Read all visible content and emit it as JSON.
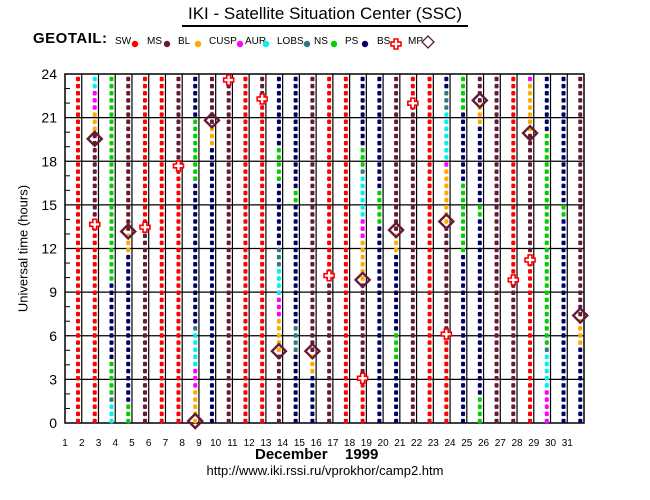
{
  "header": {
    "title": "IKI - Satellite Situation Center (SSC)",
    "satellite": "GEOTAIL:"
  },
  "footer": {
    "month": "December",
    "year": "1999",
    "url": "http://www.iki.rssi.ru/vprokhor/camp2.htm"
  },
  "chart_data": {
    "type": "scatter",
    "title": "IKI - Satellite Situation Center (SSC)",
    "xlabel": "December 1999",
    "ylabel": "Universal time (hours)",
    "xlim": [
      1,
      32
    ],
    "ylim": [
      0,
      24
    ],
    "x_ticks": [
      1,
      2,
      3,
      4,
      5,
      6,
      7,
      8,
      9,
      10,
      11,
      12,
      13,
      14,
      15,
      16,
      17,
      18,
      19,
      20,
      21,
      22,
      23,
      24,
      25,
      26,
      27,
      28,
      29,
      30,
      31
    ],
    "y_ticks": [
      0,
      3,
      6,
      9,
      12,
      15,
      18,
      21,
      24
    ],
    "grid": true,
    "legend_placement": "top",
    "legend": [
      {
        "code": "SW",
        "label": "SW",
        "marker": "dot",
        "color": "#ff0000"
      },
      {
        "code": "MS",
        "label": "MS",
        "marker": "dot",
        "color": "#661a33"
      },
      {
        "code": "BL",
        "label": "BL",
        "marker": "dot",
        "color": "#ffaa00"
      },
      {
        "code": "CUSP",
        "label": "CUSP",
        "marker": "dot",
        "color": "#ff00ff"
      },
      {
        "code": "AUR",
        "label": "AUR",
        "marker": "dot",
        "color": "#00f0f0"
      },
      {
        "code": "LOBS",
        "label": "LOBS",
        "marker": "dot",
        "color": "#2f7a80"
      },
      {
        "code": "NS",
        "label": "NS",
        "marker": "dot",
        "color": "#00d000"
      },
      {
        "code": "PS",
        "label": "PS",
        "marker": "dot",
        "color": "#000066"
      },
      {
        "code": "BS",
        "label": "BS",
        "marker": "cross",
        "color": "#ff0000"
      },
      {
        "code": "MP",
        "label": "MP",
        "marker": "diamond",
        "color": "#661a33"
      }
    ],
    "days": [
      {
        "day": 1,
        "segments": [
          [
            0,
            24,
            "SW"
          ]
        ]
      },
      {
        "day": 2,
        "segments": [
          [
            0,
            13.8,
            "SW"
          ],
          [
            13.8,
            20.5,
            "MS"
          ],
          [
            20.5,
            22,
            "BL"
          ],
          [
            22,
            23.3,
            "CUSP"
          ],
          [
            23.3,
            24,
            "AUR"
          ]
        ],
        "BS": [
          13.8
        ],
        "MP": [
          19.8
        ]
      },
      {
        "day": 3,
        "segments": [
          [
            0,
            1.5,
            "AUR"
          ],
          [
            1.5,
            2,
            "LOBS"
          ],
          [
            2,
            4.3,
            "NS"
          ],
          [
            4.3,
            10,
            "PS"
          ],
          [
            10,
            24,
            "NS"
          ]
        ]
      },
      {
        "day": 4,
        "segments": [
          [
            0,
            1.4,
            "NS"
          ],
          [
            1.4,
            12,
            "PS"
          ],
          [
            12,
            13.3,
            "BL"
          ],
          [
            13.3,
            24,
            "MS"
          ]
        ],
        "MP": [
          13.3
        ]
      },
      {
        "day": 5,
        "segments": [
          [
            0,
            13.6,
            "MS"
          ],
          [
            13.6,
            24,
            "SW"
          ]
        ],
        "BS": [
          13.6
        ]
      },
      {
        "day": 6,
        "segments": [
          [
            0,
            24,
            "SW"
          ]
        ]
      },
      {
        "day": 7,
        "segments": [
          [
            0,
            18,
            "SW"
          ],
          [
            18,
            24,
            "MS"
          ]
        ],
        "BS": [
          17.9
        ]
      },
      {
        "day": 8,
        "segments": [
          [
            0,
            2.5,
            "BL"
          ],
          [
            2.5,
            3.7,
            "CUSP"
          ],
          [
            3.7,
            6.1,
            "AUR"
          ],
          [
            6.1,
            6.8,
            "LOBS"
          ],
          [
            6.8,
            17,
            "PS"
          ],
          [
            17,
            21.3,
            "NS"
          ],
          [
            21.3,
            24,
            "PS"
          ]
        ],
        "MP": [
          0
        ]
      },
      {
        "day": 9,
        "segments": [
          [
            0,
            16.2,
            "PS"
          ],
          [
            16.2,
            16.5,
            "NS"
          ],
          [
            16.5,
            19.5,
            "PS"
          ],
          [
            19.5,
            21,
            "BL"
          ],
          [
            21,
            24,
            "MS"
          ]
        ],
        "MP": [
          21.1
        ]
      },
      {
        "day": 10,
        "segments": [
          [
            0,
            24,
            "MS"
          ]
        ],
        "BS": [
          24
        ]
      },
      {
        "day": 11,
        "segments": [
          [
            0,
            24,
            "SW"
          ]
        ]
      },
      {
        "day": 12,
        "segments": [
          [
            0,
            22.6,
            "SW"
          ],
          [
            22.6,
            24,
            "MS"
          ]
        ],
        "BS": [
          22.6
        ]
      },
      {
        "day": 13,
        "segments": [
          [
            0,
            4.9,
            "MS"
          ],
          [
            4.9,
            7.4,
            "BL"
          ],
          [
            7.4,
            8.8,
            "CUSP"
          ],
          [
            8.8,
            11,
            "AUR"
          ],
          [
            11,
            12.1,
            "LOBS"
          ],
          [
            12.1,
            17,
            "PS"
          ],
          [
            17,
            19.2,
            "NS"
          ],
          [
            19.2,
            24,
            "PS"
          ]
        ],
        "MP": [
          4.9
        ]
      },
      {
        "day": 14,
        "segments": [
          [
            0,
            4.9,
            "PS"
          ],
          [
            4.9,
            6.7,
            "LOBS"
          ],
          [
            6.7,
            15.2,
            "PS"
          ],
          [
            15.2,
            16.5,
            "NS"
          ],
          [
            16.5,
            24,
            "PS"
          ]
        ]
      },
      {
        "day": 15,
        "segments": [
          [
            0,
            3.4,
            "PS"
          ],
          [
            3.4,
            4.9,
            "BL"
          ],
          [
            4.9,
            24,
            "MS"
          ]
        ],
        "MP": [
          4.9
        ]
      },
      {
        "day": 16,
        "segments": [
          [
            0,
            10.2,
            "MS"
          ],
          [
            10.2,
            24,
            "SW"
          ]
        ],
        "BS": [
          10.2
        ]
      },
      {
        "day": 17,
        "segments": [
          [
            0,
            24,
            "SW"
          ]
        ]
      },
      {
        "day": 18,
        "segments": [
          [
            0,
            3,
            "SW"
          ],
          [
            3,
            9.9,
            "MS"
          ],
          [
            9.9,
            12.8,
            "BL"
          ],
          [
            12.8,
            14.2,
            "CUSP"
          ],
          [
            14.2,
            17.1,
            "AUR"
          ],
          [
            17.1,
            17.7,
            "LOBS"
          ],
          [
            17.7,
            19.4,
            "NS"
          ],
          [
            19.4,
            24,
            "PS"
          ]
        ],
        "BS": [
          3
        ],
        "MP": [
          9.9
        ]
      },
      {
        "day": 19,
        "segments": [
          [
            0,
            13.9,
            "PS"
          ],
          [
            13.9,
            16.5,
            "NS"
          ],
          [
            16.5,
            24,
            "PS"
          ]
        ]
      },
      {
        "day": 20,
        "segments": [
          [
            0,
            4.2,
            "PS"
          ],
          [
            4.2,
            6.1,
            "NS"
          ],
          [
            6.1,
            11.9,
            "PS"
          ],
          [
            11.9,
            13.4,
            "BL"
          ],
          [
            13.4,
            24,
            "MS"
          ]
        ],
        "MP": [
          13.4
        ]
      },
      {
        "day": 21,
        "segments": [
          [
            0,
            22.3,
            "MS"
          ],
          [
            22.3,
            24,
            "SW"
          ]
        ],
        "BS": [
          22.3
        ]
      },
      {
        "day": 22,
        "segments": [
          [
            0,
            24,
            "SW"
          ]
        ]
      },
      {
        "day": 23,
        "segments": [
          [
            0,
            6.1,
            "SW"
          ],
          [
            6.1,
            14,
            "MS"
          ],
          [
            14,
            17.6,
            "BL"
          ],
          [
            17.6,
            18.2,
            "CUSP"
          ],
          [
            18.2,
            21.8,
            "AUR"
          ],
          [
            21.8,
            23.2,
            "LOBS"
          ],
          [
            23.2,
            24,
            "PS"
          ]
        ],
        "BS": [
          6.1
        ],
        "MP": [
          14
        ]
      },
      {
        "day": 24,
        "segments": [
          [
            0,
            12,
            "PS"
          ],
          [
            12,
            16.6,
            "NS"
          ],
          [
            16.6,
            21.8,
            "PS"
          ],
          [
            21.8,
            24,
            "NS"
          ]
        ]
      },
      {
        "day": 25,
        "segments": [
          [
            0,
            1.9,
            "NS"
          ],
          [
            1.9,
            14.2,
            "PS"
          ],
          [
            14.2,
            15.5,
            "NS"
          ],
          [
            15.5,
            20.6,
            "PS"
          ],
          [
            20.6,
            22.4,
            "BL"
          ],
          [
            22.4,
            24,
            "MS"
          ]
        ],
        "MP": [
          22.5
        ]
      },
      {
        "day": 26,
        "segments": [
          [
            0,
            24,
            "MS"
          ]
        ]
      },
      {
        "day": 27,
        "segments": [
          [
            0,
            9.9,
            "MS"
          ],
          [
            9.9,
            24,
            "SW"
          ]
        ],
        "BS": [
          9.9
        ]
      },
      {
        "day": 28,
        "segments": [
          [
            0,
            11.3,
            "SW"
          ],
          [
            11.3,
            20.2,
            "MS"
          ],
          [
            20.2,
            23.7,
            "BL"
          ],
          [
            23.7,
            24,
            "CUSP"
          ]
        ],
        "BS": [
          11.3
        ],
        "MP": [
          20.2
        ]
      },
      {
        "day": 29,
        "segments": [
          [
            0,
            2.1,
            "CUSP"
          ],
          [
            2.1,
            4.9,
            "AUR"
          ],
          [
            4.9,
            5.2,
            "LOBS"
          ],
          [
            5.2,
            20.1,
            "NS"
          ],
          [
            20.1,
            24,
            "PS"
          ]
        ]
      },
      {
        "day": 30,
        "segments": [
          [
            0,
            14.2,
            "PS"
          ],
          [
            14.2,
            15.5,
            "NS"
          ],
          [
            15.5,
            24,
            "PS"
          ]
        ]
      },
      {
        "day": 31,
        "segments": [
          [
            0,
            5.4,
            "PS"
          ],
          [
            5.4,
            7.4,
            "BL"
          ],
          [
            7.4,
            24,
            "MS"
          ]
        ],
        "MP": [
          7.4
        ]
      }
    ]
  }
}
